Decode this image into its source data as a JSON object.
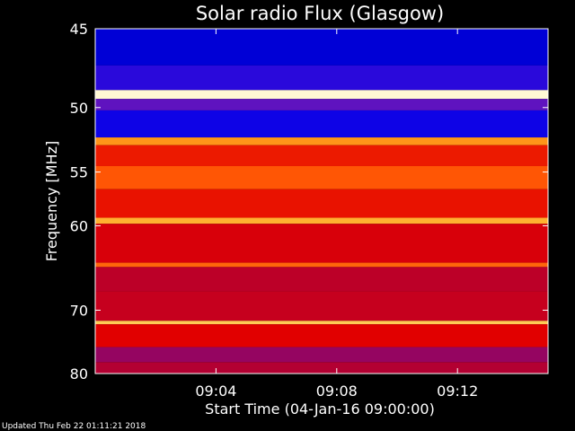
{
  "chart_data": {
    "type": "heatmap",
    "title": "Solar radio Flux (Glasgow)",
    "xlabel": "Start Time (04-Jan-16 09:00:00)",
    "ylabel": "Frequency [MHz]",
    "x_ticks": [
      "09:04",
      "09:08",
      "09:12"
    ],
    "x_tick_minutes": [
      4,
      8,
      12
    ],
    "xlim_minutes": [
      0,
      15
    ],
    "y_ticks": [
      45,
      50,
      55,
      60,
      70,
      80
    ],
    "ylim": [
      45,
      80
    ],
    "y_scale": "reciprocal",
    "colormap": "blue-red-yellow-white",
    "bands": [
      {
        "f_start": 45.0,
        "f_end": 47.2,
        "level": 0.1
      },
      {
        "f_start": 47.2,
        "f_end": 48.8,
        "level": 0.18
      },
      {
        "f_start": 48.8,
        "f_end": 49.4,
        "level": 0.97
      },
      {
        "f_start": 49.4,
        "f_end": 50.2,
        "level": 0.26
      },
      {
        "f_start": 50.2,
        "f_end": 52.2,
        "level": 0.14
      },
      {
        "f_start": 52.2,
        "f_end": 52.8,
        "level": 0.78
      },
      {
        "f_start": 52.8,
        "f_end": 54.5,
        "level": 0.58
      },
      {
        "f_start": 54.5,
        "f_end": 56.5,
        "level": 0.7
      },
      {
        "f_start": 56.5,
        "f_end": 59.2,
        "level": 0.56
      },
      {
        "f_start": 59.2,
        "f_end": 59.8,
        "level": 0.82
      },
      {
        "f_start": 59.8,
        "f_end": 64.0,
        "level": 0.5
      },
      {
        "f_start": 64.0,
        "f_end": 64.5,
        "level": 0.72
      },
      {
        "f_start": 64.5,
        "f_end": 67.5,
        "level": 0.44
      },
      {
        "f_start": 67.5,
        "f_end": 71.5,
        "level": 0.46
      },
      {
        "f_start": 71.5,
        "f_end": 72.0,
        "level": 0.86
      },
      {
        "f_start": 72.0,
        "f_end": 75.5,
        "level": 0.52
      },
      {
        "f_start": 75.5,
        "f_end": 78.0,
        "level": 0.36
      },
      {
        "f_start": 78.0,
        "f_end": 80.0,
        "level": 0.42
      }
    ],
    "grid": false
  },
  "footer": {
    "updated": "Updated Thu Feb 22 01:11:21 2018"
  },
  "colors": {
    "background": "#000000",
    "text": "#ffffff",
    "axis": "#ffffff"
  }
}
